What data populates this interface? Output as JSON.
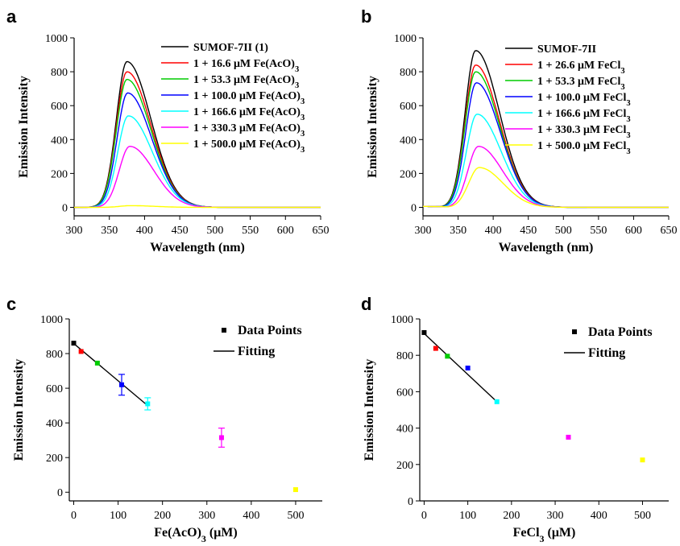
{
  "chart_data": [
    {
      "panel": "a",
      "type": "line",
      "xlabel": "Wavelength (nm)",
      "ylabel": "Emission Intensity",
      "xlim": [
        300,
        650
      ],
      "ylim": [
        -50,
        1000
      ],
      "xticks": [
        300,
        350,
        400,
        450,
        500,
        550,
        600,
        650
      ],
      "yticks": [
        0,
        200,
        400,
        600,
        800,
        1000
      ],
      "legend_position": "top-right",
      "series": [
        {
          "name": "SUMOF-7II (1)",
          "color": "#000000",
          "peak_x": 375,
          "peak_y": 860
        },
        {
          "name": "1 + 16.6 μM Fe(AcO)3",
          "color": "#ff0000",
          "peak_x": 375,
          "peak_y": 800
        },
        {
          "name": "1 + 53.3 μM Fe(AcO)3",
          "color": "#00cc00",
          "peak_x": 375,
          "peak_y": 755
        },
        {
          "name": "1 + 100.0 μM Fe(AcO)3",
          "color": "#0000ff",
          "peak_x": 376,
          "peak_y": 675
        },
        {
          "name": "1 + 166.6 μM Fe(AcO)3",
          "color": "#00ffff",
          "peak_x": 377,
          "peak_y": 540
        },
        {
          "name": "1 + 330.3 μM Fe(AcO)3",
          "color": "#ff00ff",
          "peak_x": 379,
          "peak_y": 360
        },
        {
          "name": "1 + 500.0 μM Fe(AcO)3",
          "color": "#ffff00",
          "peak_x": 380,
          "peak_y": 10
        }
      ]
    },
    {
      "panel": "b",
      "type": "line",
      "xlabel": "Wavelength (nm)",
      "ylabel": "Emission Intensity",
      "xlim": [
        300,
        650
      ],
      "ylim": [
        -50,
        1000
      ],
      "xticks": [
        300,
        350,
        400,
        450,
        500,
        550,
        600,
        650
      ],
      "yticks": [
        0,
        200,
        400,
        600,
        800,
        1000
      ],
      "legend_position": "top-right",
      "series": [
        {
          "name": "SUMOF-7II",
          "color": "#000000",
          "peak_x": 375,
          "peak_y": 925
        },
        {
          "name": "1 + 26.6 μM FeCl3",
          "color": "#ff0000",
          "peak_x": 375,
          "peak_y": 840
        },
        {
          "name": "1 + 53.3 μM FeCl3",
          "color": "#00cc00",
          "peak_x": 375,
          "peak_y": 800
        },
        {
          "name": "1 + 100.0 μM FeCl3",
          "color": "#0000ff",
          "peak_x": 376,
          "peak_y": 735
        },
        {
          "name": "1 + 166.6 μM FeCl3",
          "color": "#00ffff",
          "peak_x": 377,
          "peak_y": 550
        },
        {
          "name": "1 + 330.3 μM FeCl3",
          "color": "#ff00ff",
          "peak_x": 379,
          "peak_y": 360
        },
        {
          "name": "1 + 500.0 μM FeCl3",
          "color": "#ffff00",
          "peak_x": 380,
          "peak_y": 235
        }
      ]
    },
    {
      "panel": "c",
      "type": "scatter",
      "xlabel": "Fe(AcO)3 (μM)",
      "ylabel": "Emission Intensity",
      "xlim": [
        -10,
        560
      ],
      "ylim": [
        -50,
        1000
      ],
      "xticks": [
        0,
        100,
        200,
        300,
        400,
        500
      ],
      "yticks": [
        0,
        200,
        400,
        600,
        800,
        1000
      ],
      "legend": [
        "Data Points",
        "Fitting"
      ],
      "points": [
        {
          "x": 0,
          "y": 860,
          "err": 0,
          "color": "#000000"
        },
        {
          "x": 16.6,
          "y": 812,
          "err": 0,
          "color": "#ff0000"
        },
        {
          "x": 53.3,
          "y": 745,
          "err": 0,
          "color": "#00cc00"
        },
        {
          "x": 108,
          "y": 620,
          "err": 60,
          "color": "#0000ff"
        },
        {
          "x": 166.6,
          "y": 510,
          "err": 35,
          "color": "#00ffff"
        },
        {
          "x": 333,
          "y": 315,
          "err": 55,
          "color": "#ff00ff"
        },
        {
          "x": 500,
          "y": 15,
          "err": 0,
          "color": "#ffff00"
        }
      ],
      "fit": {
        "x": [
          0,
          166.6
        ],
        "y": [
          858,
          500
        ]
      }
    },
    {
      "panel": "d",
      "type": "scatter",
      "xlabel": "FeCl3 (μM)",
      "ylabel": "Emission Intensity",
      "xlim": [
        -10,
        560
      ],
      "ylim": [
        0,
        1000
      ],
      "xticks": [
        0,
        100,
        200,
        300,
        400,
        500
      ],
      "yticks": [
        0,
        200,
        400,
        600,
        800,
        1000
      ],
      "legend": [
        "Data Points",
        "Fitting"
      ],
      "points": [
        {
          "x": 0,
          "y": 925,
          "err": 0,
          "color": "#000000"
        },
        {
          "x": 26.6,
          "y": 838,
          "err": 0,
          "color": "#ff0000"
        },
        {
          "x": 53.3,
          "y": 795,
          "err": 0,
          "color": "#00cc00"
        },
        {
          "x": 100,
          "y": 730,
          "err": 0,
          "color": "#0000ff"
        },
        {
          "x": 166.6,
          "y": 545,
          "err": 0,
          "color": "#00ffff"
        },
        {
          "x": 330.3,
          "y": 350,
          "err": 0,
          "color": "#ff00ff"
        },
        {
          "x": 500,
          "y": 225,
          "err": 0,
          "color": "#ffff00"
        }
      ],
      "fit": {
        "x": [
          0,
          166.6
        ],
        "y": [
          920,
          545
        ]
      }
    }
  ]
}
